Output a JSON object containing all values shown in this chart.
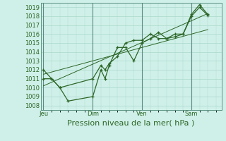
{
  "background_color": "#cff0e8",
  "grid_color": "#aad8cc",
  "line_color": "#2d6628",
  "marker_color": "#2d6628",
  "xlabel": "Pression niveau de la mer( hPa )",
  "ylim": [
    1007.5,
    1019.5
  ],
  "yticks": [
    1008,
    1009,
    1010,
    1011,
    1012,
    1013,
    1014,
    1015,
    1016,
    1017,
    1018,
    1019
  ],
  "xtick_labels": [
    "Jeu",
    "Dim",
    "Ven",
    "Sam"
  ],
  "xtick_positions": [
    0,
    36,
    72,
    108
  ],
  "xlim": [
    -2,
    130
  ],
  "series1_x": [
    0,
    6,
    12,
    18,
    36,
    42,
    45,
    48,
    54,
    60,
    66,
    72,
    78,
    84,
    90,
    96,
    102,
    108,
    114,
    120
  ],
  "series1_y": [
    1012,
    1011,
    1010,
    1008.5,
    1009,
    1012,
    1011,
    1012.5,
    1014.5,
    1014.5,
    1013,
    1015,
    1015.5,
    1016.2,
    1015.5,
    1016,
    1016,
    1018.2,
    1019.3,
    1018.2
  ],
  "series2_x": [
    0,
    6,
    12,
    36,
    42,
    45,
    48,
    54,
    60,
    66,
    72,
    78,
    84,
    90,
    96,
    102,
    108,
    114,
    120
  ],
  "series2_y": [
    1011,
    1011,
    1010,
    1011,
    1012.5,
    1012,
    1012.7,
    1013.5,
    1015,
    1015.3,
    1015.3,
    1016,
    1015.5,
    1015.5,
    1015.7,
    1016,
    1018,
    1019.0,
    1018.1
  ],
  "trend1_x": [
    0,
    120
  ],
  "trend1_y": [
    1011.5,
    1016.5
  ],
  "trend2_x": [
    0,
    120
  ],
  "trend2_y": [
    1010.2,
    1018.3
  ],
  "xlabel_fontsize": 8,
  "tick_fontsize": 6,
  "figsize": [
    3.2,
    2.0
  ],
  "dpi": 100
}
